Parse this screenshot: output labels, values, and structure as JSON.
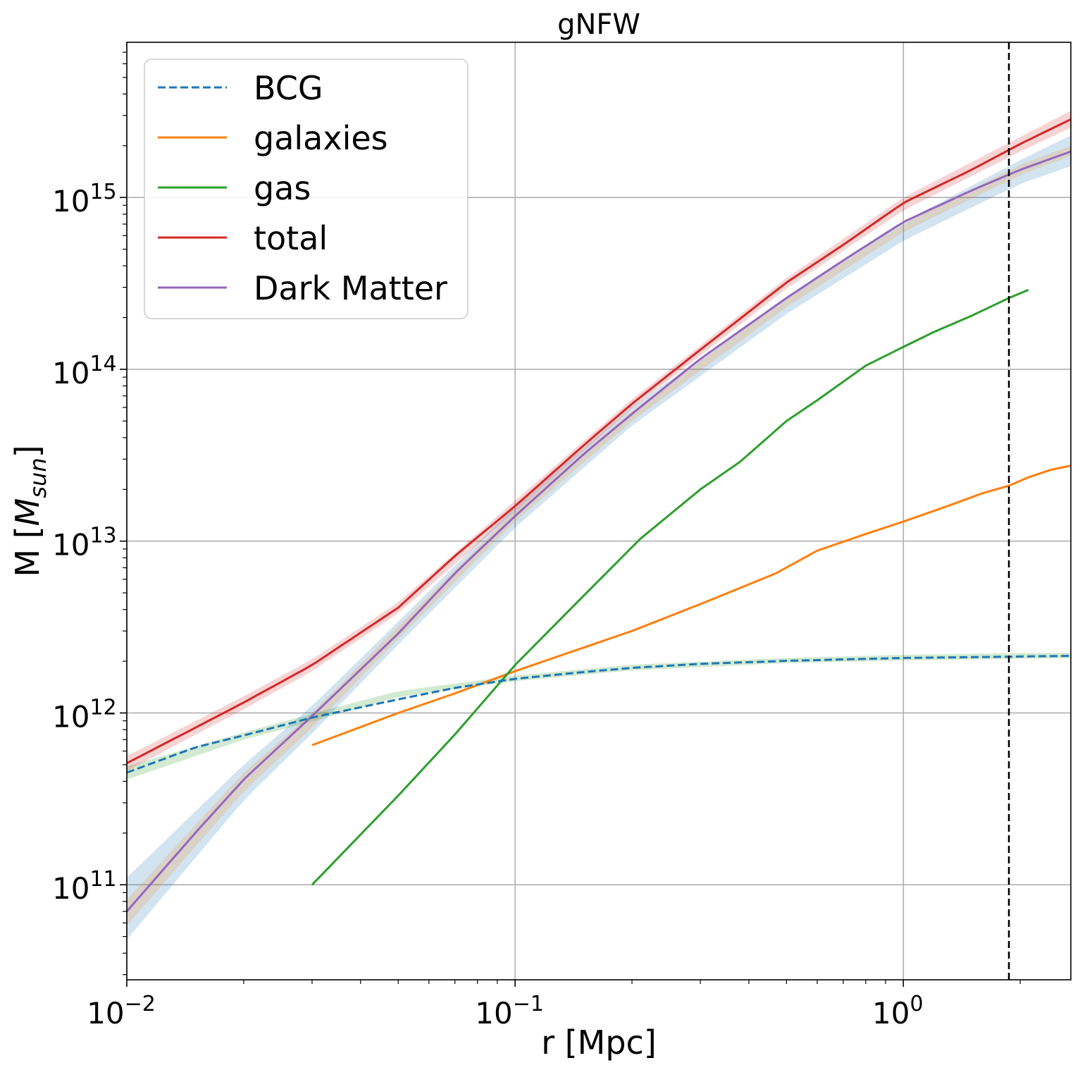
{
  "chart_data": {
    "type": "line",
    "title": "gNFW",
    "xlabel": "r [Mpc]",
    "ylabel_main": "M [",
    "ylabel_italic": "M",
    "ylabel_sub": "sun",
    "ylabel_close": "]",
    "x_scale": "log",
    "y_scale": "log",
    "xlim": [
      0.01,
      2.7
    ],
    "ylim": [
      28000000000.0,
      8000000000000000.0
    ],
    "grid": true,
    "legend_position": "upper-left",
    "x_ticks": [
      {
        "value": 0.01,
        "base": "10",
        "exp": "−2"
      },
      {
        "value": 0.1,
        "base": "10",
        "exp": "−1"
      },
      {
        "value": 1,
        "base": "10",
        "exp": "0"
      }
    ],
    "y_ticks": [
      {
        "value": 100000000000.0,
        "base": "10",
        "exp": "11"
      },
      {
        "value": 1000000000000.0,
        "base": "10",
        "exp": "12"
      },
      {
        "value": 10000000000000.0,
        "base": "10",
        "exp": "13"
      },
      {
        "value": 100000000000000.0,
        "base": "10",
        "exp": "14"
      },
      {
        "value": 1000000000000000.0,
        "base": "10",
        "exp": "15"
      }
    ],
    "vline": {
      "x": 1.87,
      "color": "#000000",
      "style": "dashed"
    },
    "bands": [
      {
        "color": "#2ca02c",
        "opacity": 0.22,
        "x": [
          0.01,
          0.02,
          0.03,
          0.05,
          0.1,
          0.2,
          0.5,
          1.0,
          2.0,
          2.7
        ],
        "low": [
          410000000000.0,
          700000000000.0,
          890000000000.0,
          1240000000000.0,
          1530000000000.0,
          1770000000000.0,
          1950000000000.0,
          2020000000000.0,
          2070000000000.0,
          2080000000000.0
        ],
        "high": [
          490000000000.0,
          770000000000.0,
          990000000000.0,
          1340000000000.0,
          1650000000000.0,
          1910000000000.0,
          2090000000000.0,
          2180000000000.0,
          2230000000000.0,
          2240000000000.0
        ]
      },
      {
        "color": "#1f77b4",
        "opacity": 0.2,
        "x": [
          0.01,
          0.02,
          0.03,
          0.05,
          0.1,
          0.2,
          0.5,
          1.0,
          2.0,
          2.7
        ],
        "low": [
          48000000000.0,
          310000000000.0,
          760000000000.0,
          2500000000000.0,
          12000000000000.0,
          47000000000000.0,
          210000000000000.0,
          560000000000000.0,
          1200000000000000.0,
          1520000000000000.0
        ],
        "high": [
          110000000000.0,
          500000000000.0,
          1100000000000.0,
          3400000000000.0,
          16000000000000.0,
          60000000000000.0,
          265000000000000.0,
          720000000000000.0,
          1650000000000000.0,
          2300000000000000.0
        ]
      },
      {
        "color": "#ff7f0e",
        "opacity": 0.18,
        "x": [
          0.01,
          0.02,
          0.03,
          0.05,
          0.1,
          0.2,
          0.5,
          1.0,
          2.0,
          2.7
        ],
        "low": [
          58000000000.0,
          350000000000.0,
          820000000000.0,
          2700000000000.0,
          13000000000000.0,
          50000000000000.0,
          230000000000000.0,
          630000000000000.0,
          1350000000000000.0,
          1750000000000000.0
        ],
        "high": [
          82000000000.0,
          450000000000.0,
          1000000000000.0,
          3200000000000.0,
          15000000000000.0,
          57000000000000.0,
          260000000000000.0,
          700000000000000.0,
          1550000000000000.0,
          2000000000000000.0
        ]
      },
      {
        "color": "#d62728",
        "opacity": 0.2,
        "x": [
          0.01,
          0.02,
          0.03,
          0.05,
          0.1,
          0.2,
          0.5,
          1.0,
          2.0,
          2.7
        ],
        "low": [
          460000000000.0,
          1050000000000.0,
          1750000000000.0,
          3800000000000.0,
          14800000000000.0,
          59000000000000.0,
          295000000000000.0,
          840000000000000.0,
          1850000000000000.0,
          2550000000000000.0
        ],
        "high": [
          560000000000.0,
          1250000000000.0,
          2050000000000.0,
          4400000000000.0,
          17200000000000.0,
          67000000000000.0,
          340000000000000.0,
          1000000000000000.0,
          2250000000000000.0,
          3200000000000000.0
        ]
      }
    ],
    "series": [
      {
        "name": "BCG",
        "color": "#1f77b4",
        "dashed": true,
        "x": [
          0.01,
          0.015,
          0.02,
          0.03,
          0.05,
          0.07,
          0.1,
          0.15,
          0.2,
          0.3,
          0.5,
          1.0,
          2.0,
          2.7
        ],
        "y": [
          450000000000.0,
          630000000000.0,
          740000000000.0,
          940000000000.0,
          1200000000000.0,
          1400000000000.0,
          1580000000000.0,
          1730000000000.0,
          1830000000000.0,
          1930000000000.0,
          2010000000000.0,
          2090000000000.0,
          2130000000000.0,
          2150000000000.0
        ]
      },
      {
        "name": "galaxies",
        "color": "#ff7f0e",
        "dashed": false,
        "x": [
          0.03,
          0.05,
          0.07,
          0.1,
          0.15,
          0.2,
          0.3,
          0.4,
          0.47,
          0.6,
          0.8,
          1.0,
          1.3,
          1.6,
          1.87,
          2.1,
          2.4,
          2.7
        ],
        "y": [
          650000000000.0,
          1000000000000.0,
          1300000000000.0,
          1750000000000.0,
          2400000000000.0,
          3000000000000.0,
          4300000000000.0,
          5600000000000.0,
          6500000000000.0,
          8800000000000.0,
          11000000000000.0,
          13000000000000.0,
          16000000000000.0,
          19000000000000.0,
          21000000000000.0,
          23500000000000.0,
          26000000000000.0,
          27500000000000.0
        ]
      },
      {
        "name": "gas",
        "color": "#2ca02c",
        "dashed": false,
        "x": [
          0.03,
          0.05,
          0.07,
          0.1,
          0.15,
          0.21,
          0.3,
          0.38,
          0.5,
          0.6,
          0.8,
          1.0,
          1.2,
          1.5,
          1.87,
          2.1
        ],
        "y": [
          100000000000.0,
          330000000000.0,
          750000000000.0,
          1900000000000.0,
          4800000000000.0,
          10300000000000.0,
          20000000000000.0,
          29000000000000.0,
          50000000000000.0,
          66000000000000.0,
          105000000000000.0,
          135000000000000.0,
          165000000000000.0,
          205000000000000.0,
          260000000000000.0,
          290000000000000.0
        ]
      },
      {
        "name": "total",
        "color": "#d62728",
        "dashed": false,
        "x": [
          0.01,
          0.015,
          0.02,
          0.03,
          0.05,
          0.07,
          0.1,
          0.15,
          0.2,
          0.3,
          0.5,
          0.7,
          1.0,
          1.5,
          2.0,
          2.7
        ],
        "y": [
          510000000000.0,
          820000000000.0,
          1150000000000.0,
          1900000000000.0,
          4100000000000.0,
          8200000000000.0,
          16000000000000.0,
          36000000000000.0,
          63000000000000.0,
          130000000000000.0,
          320000000000000.0,
          530000000000000.0,
          930000000000000.0,
          1450000000000000.0,
          2050000000000000.0,
          2850000000000000.0
        ]
      },
      {
        "name": "Dark Matter",
        "color": "#9467bd",
        "dashed": false,
        "x": [
          0.01,
          0.015,
          0.02,
          0.03,
          0.05,
          0.07,
          0.1,
          0.15,
          0.2,
          0.3,
          0.5,
          0.7,
          1.0,
          1.5,
          2.0,
          2.7
        ],
        "y": [
          70000000000.0,
          200000000000.0,
          410000000000.0,
          960000000000.0,
          2900000000000.0,
          6500000000000.0,
          14000000000000.0,
          32000000000000.0,
          55000000000000.0,
          115000000000000.0,
          260000000000000.0,
          430000000000000.0,
          720000000000000.0,
          1100000000000000.0,
          1450000000000000.0,
          1850000000000000.0
        ]
      }
    ]
  }
}
